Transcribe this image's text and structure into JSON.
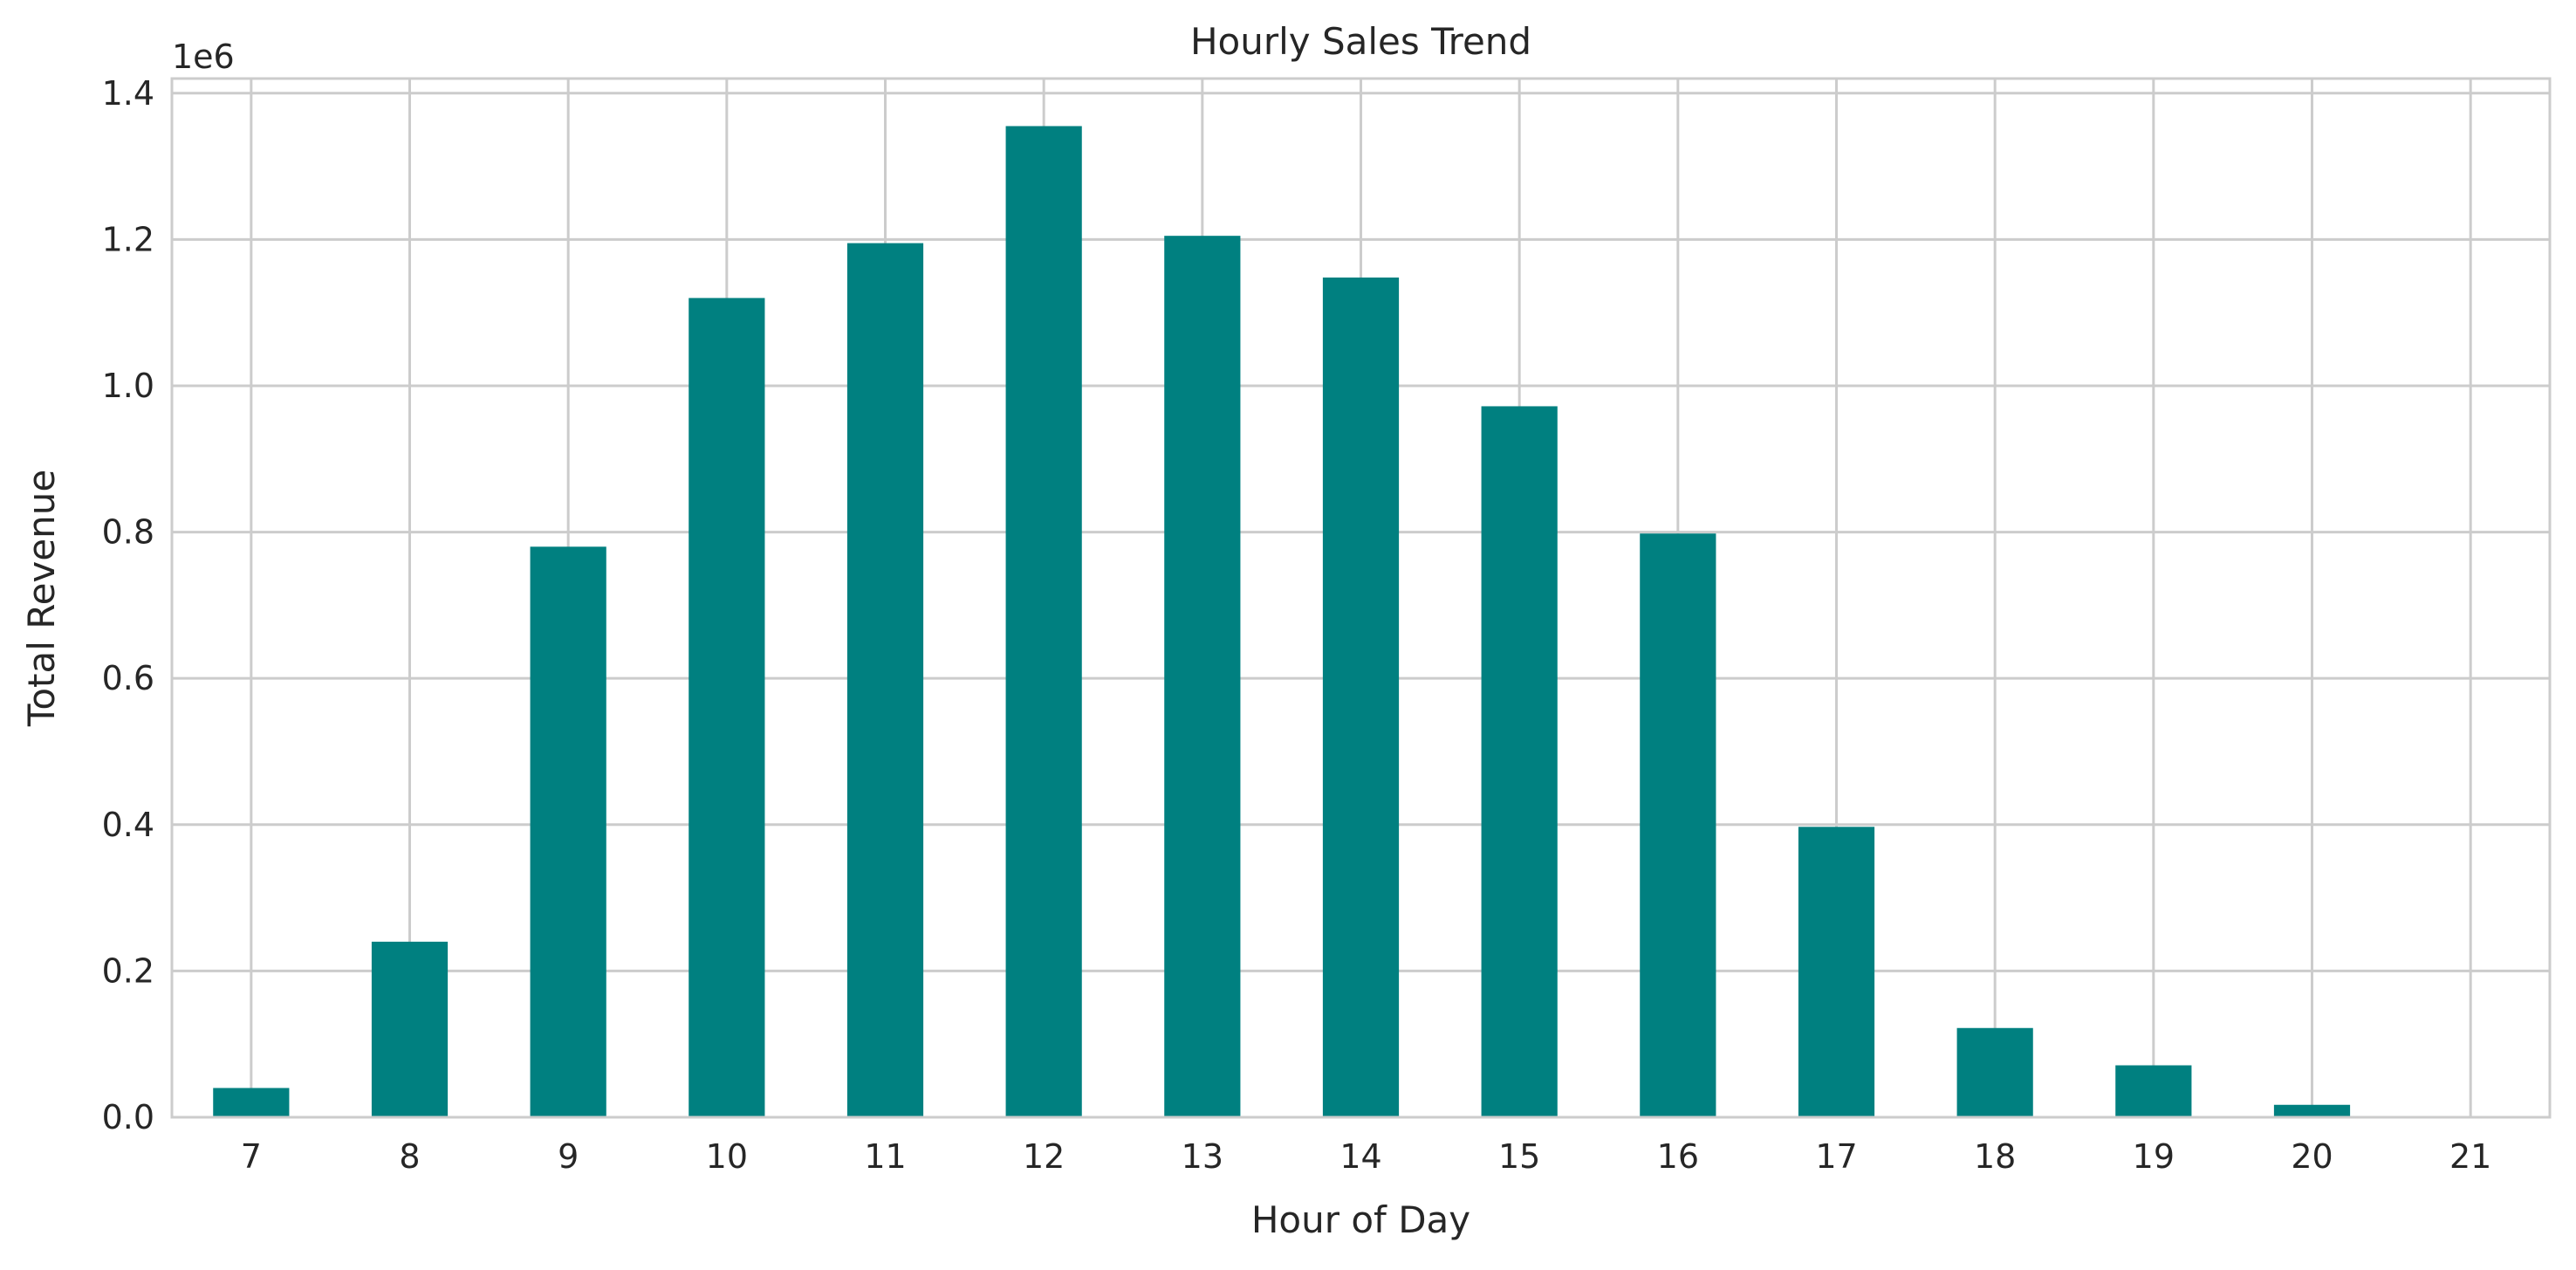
{
  "chart_data": {
    "type": "bar",
    "title": "Hourly Sales Trend",
    "xlabel": "Hour of Day",
    "ylabel": "Total Revenue",
    "y_offset_text": "1e6",
    "categories": [
      "7",
      "8",
      "9",
      "10",
      "11",
      "12",
      "13",
      "14",
      "15",
      "16",
      "17",
      "18",
      "19",
      "20",
      "21"
    ],
    "values": [
      40000,
      240000,
      780000,
      1120000,
      1195000,
      1355000,
      1205000,
      1148000,
      972000,
      798000,
      397000,
      122000,
      71000,
      17000,
      0
    ],
    "ylim": [
      0,
      1420000
    ],
    "yticks": [
      0,
      200000,
      400000,
      600000,
      800000,
      1000000,
      1200000,
      1400000
    ],
    "ytick_labels": [
      "0.0",
      "0.2",
      "0.4",
      "0.6",
      "0.8",
      "1.0",
      "1.2",
      "1.4"
    ],
    "grid": true,
    "bar_color": "#008080",
    "grid_color": "#cccccc",
    "background": "#ffffff"
  }
}
